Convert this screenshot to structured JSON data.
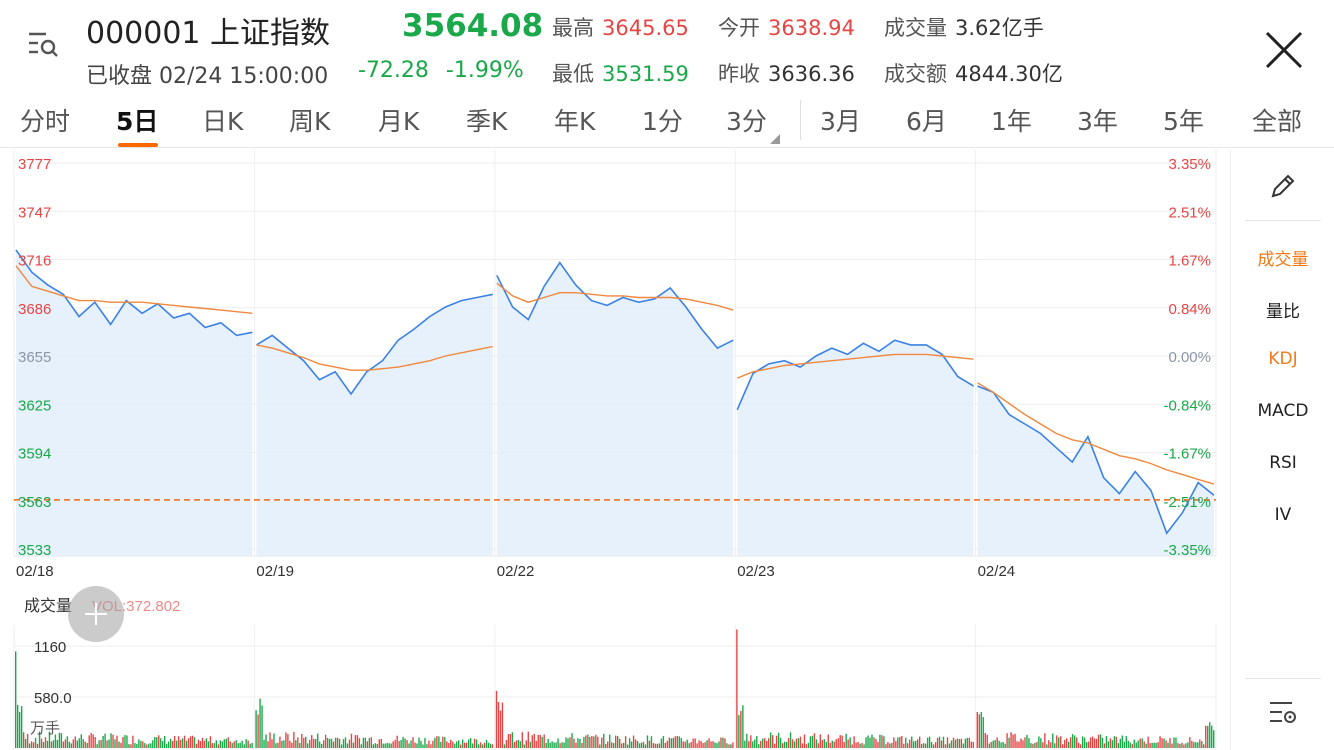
{
  "header": {
    "code_name": "000001 上证指数",
    "price": "3564.08",
    "status": "已收盘 02/24 15:00:00",
    "change_abs": "-72.28",
    "change_pct": "-1.99%",
    "high_label": "最高",
    "high": "3645.65",
    "open_label": "今开",
    "open": "3638.94",
    "volume_label": "成交量",
    "volume": "3.62亿手",
    "low_label": "最低",
    "low": "3531.59",
    "prev_close_label": "昨收",
    "prev_close": "3636.36",
    "amount_label": "成交额",
    "amount": "4844.30亿"
  },
  "tabs": [
    "分时",
    "5日",
    "日K",
    "周K",
    "月K",
    "季K",
    "年K",
    "1分",
    "3分",
    "3月",
    "6月",
    "1年",
    "3年",
    "5年",
    "全部"
  ],
  "active_tab": "5日",
  "side_panel": [
    "成交量",
    "量比",
    "KDJ",
    "MACD",
    "RSI",
    "IV"
  ],
  "colors": {
    "up": "#e64545",
    "down": "#1aa84a",
    "line": "#3b82e6",
    "avg": "#f0883e",
    "fill": "#e3eefc"
  },
  "chart_data": {
    "type": "line",
    "x_ticks": [
      "02/18",
      "02/19",
      "02/22",
      "02/23",
      "02/24"
    ],
    "y_ticks_left": [
      "3777",
      "3747",
      "3716",
      "3686",
      "3655",
      "3625",
      "3594",
      "3563",
      "3533"
    ],
    "y_ticks_right": [
      "3.35%",
      "2.51%",
      "1.67%",
      "0.84%",
      "0.00%",
      "-0.84%",
      "-1.67%",
      "-2.51%",
      "-3.35%"
    ],
    "ylim": [
      3533,
      3777
    ],
    "reference_line": 3564.08,
    "days": [
      {
        "label": "02/18",
        "price": [
          3722,
          3708,
          3700,
          3694,
          3680,
          3689,
          3675,
          3690,
          3682,
          3688,
          3679,
          3682,
          3673,
          3676,
          3668,
          3670
        ],
        "avg": [
          3712,
          3699,
          3696,
          3693,
          3690,
          3690,
          3689,
          3689,
          3689,
          3688,
          3687,
          3686,
          3685,
          3684,
          3683,
          3682
        ]
      },
      {
        "label": "02/19",
        "price": [
          3662,
          3668,
          3660,
          3652,
          3640,
          3645,
          3631,
          3645,
          3652,
          3665,
          3672,
          3680,
          3686,
          3690,
          3692,
          3694
        ],
        "avg": [
          3662,
          3660,
          3657,
          3654,
          3650,
          3648,
          3646,
          3646,
          3647,
          3648,
          3650,
          3652,
          3655,
          3657,
          3659,
          3661
        ]
      },
      {
        "label": "02/22",
        "price": [
          3706,
          3686,
          3678,
          3699,
          3714,
          3700,
          3690,
          3687,
          3692,
          3689,
          3691,
          3698,
          3686,
          3672,
          3660,
          3665
        ],
        "avg": [
          3701,
          3693,
          3689,
          3692,
          3695,
          3695,
          3694,
          3693,
          3693,
          3692,
          3692,
          3692,
          3691,
          3689,
          3687,
          3684
        ]
      },
      {
        "label": "02/23",
        "price": [
          3621,
          3644,
          3650,
          3652,
          3648,
          3655,
          3660,
          3656,
          3663,
          3658,
          3665,
          3662,
          3662,
          3656,
          3642,
          3636
        ],
        "avg": [
          3641,
          3645,
          3647,
          3649,
          3650,
          3651,
          3652,
          3653,
          3654,
          3655,
          3656,
          3656,
          3656,
          3655,
          3654,
          3653
        ]
      },
      {
        "label": "02/24",
        "price": [
          3636,
          3632,
          3618,
          3612,
          3606,
          3597,
          3588,
          3604,
          3578,
          3568,
          3582,
          3570,
          3543,
          3556,
          3575,
          3567
        ],
        "avg": [
          3638,
          3632,
          3625,
          3618,
          3612,
          3606,
          3602,
          3600,
          3596,
          3592,
          3590,
          3587,
          3583,
          3580,
          3577,
          3574
        ]
      }
    ],
    "volume": {
      "title": "成交量",
      "vol_label": "VOL:372.802",
      "y_ticks": [
        "1160",
        "580.0"
      ],
      "unit": "万手",
      "max": 1400
    }
  }
}
